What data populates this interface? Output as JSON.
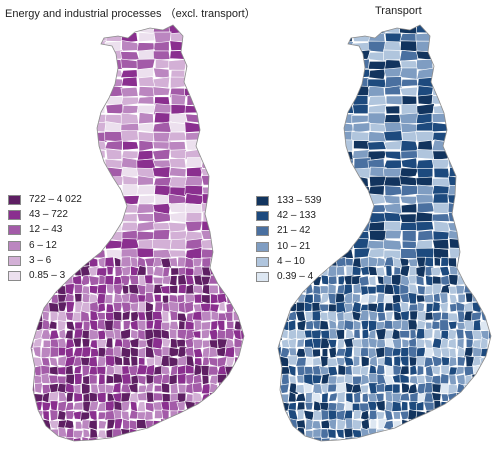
{
  "maps": [
    {
      "title": "Energy and industrial processes （excl. transport）",
      "legend": [
        {
          "label": "722 – 4 022",
          "color": "#5e1f63"
        },
        {
          "label": "43 – 722",
          "color": "#8a2f8f"
        },
        {
          "label": "12 – 43",
          "color": "#a35ba8"
        },
        {
          "label": "6 – 12",
          "color": "#bb86c0"
        },
        {
          "label": "3 – 6",
          "color": "#d3b0d6"
        },
        {
          "label": "0.85 – 3",
          "color": "#ece0ee"
        }
      ]
    },
    {
      "title": "Transport",
      "legend": [
        {
          "label": "133 – 539",
          "color": "#12345e"
        },
        {
          "label": "42 – 133",
          "color": "#1d4a7e"
        },
        {
          "label": "21 – 42",
          "color": "#4a70a0"
        },
        {
          "label": "10 – 21",
          "color": "#7f9dc2"
        },
        {
          "label": "4 – 10",
          "color": "#b0c5dd"
        },
        {
          "label": "0.39 – 4",
          "color": "#dde7f2"
        }
      ]
    }
  ]
}
